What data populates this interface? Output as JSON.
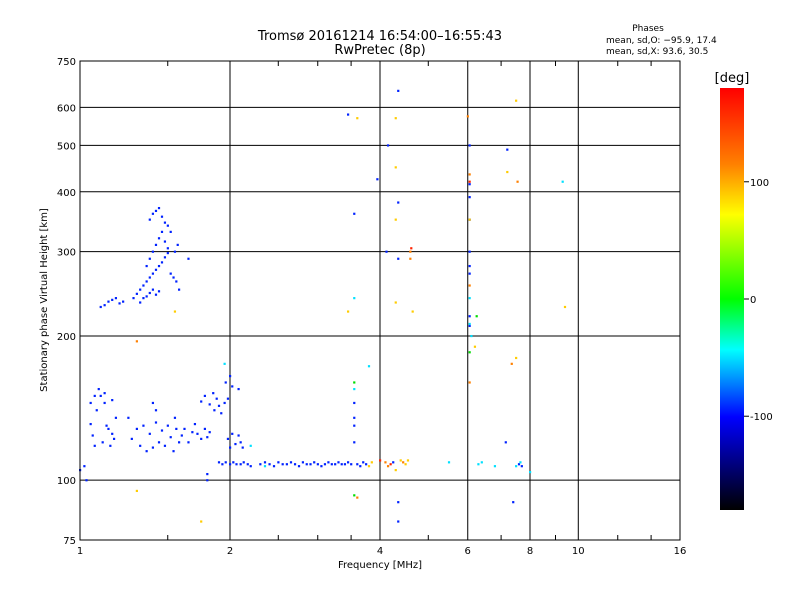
{
  "chart_data": {
    "type": "scatter",
    "title": "Tromsø 20161214 16:54:00–16:55:43",
    "subtitle": "RwPretec (8p)",
    "xlabel": "Frequency [MHz]",
    "ylabel": "Stationary phase Virtual Height [km]",
    "x_scale": "log",
    "y_scale": "log",
    "xlim": [
      1,
      16
    ],
    "ylim": [
      75,
      750
    ],
    "x_ticks": [
      1,
      2,
      4,
      6,
      8,
      10,
      16
    ],
    "y_ticks": [
      75,
      100,
      200,
      300,
      400,
      500,
      600,
      750
    ],
    "grid": true,
    "stats": {
      "header": "Phases",
      "line_o": "mean, sd,O: −95.9, 17.4",
      "line_x": "mean, sd,X:  93.6, 30.5"
    },
    "colorbar": {
      "label": "[deg]",
      "range": [
        -180,
        180
      ],
      "ticks": [
        100,
        0,
        -100
      ],
      "colors": [
        "#ff0000",
        "#ff8000",
        "#ffff00",
        "#00ff00",
        "#00ffff",
        "#0000ff",
        "#000000"
      ]
    },
    "series": [
      {
        "color": "#0022ff",
        "points": [
          [
            1.0,
            105
          ],
          [
            1.02,
            107
          ],
          [
            1.03,
            100
          ],
          [
            1.05,
            131
          ],
          [
            1.06,
            124
          ],
          [
            1.07,
            118
          ],
          [
            1.08,
            140
          ],
          [
            1.1,
            150
          ],
          [
            1.11,
            120
          ],
          [
            1.12,
            152
          ],
          [
            1.13,
            130
          ],
          [
            1.15,
            118
          ],
          [
            1.16,
            147
          ],
          [
            1.17,
            122
          ],
          [
            1.18,
            135
          ],
          [
            1.05,
            145
          ],
          [
            1.07,
            150
          ],
          [
            1.09,
            155
          ],
          [
            1.12,
            145
          ],
          [
            1.14,
            128
          ],
          [
            1.16,
            125
          ],
          [
            1.25,
            135
          ],
          [
            1.27,
            122
          ],
          [
            1.3,
            128
          ],
          [
            1.32,
            118
          ],
          [
            1.34,
            130
          ],
          [
            1.36,
            115
          ],
          [
            1.38,
            125
          ],
          [
            1.4,
            117
          ],
          [
            1.42,
            132
          ],
          [
            1.44,
            120
          ],
          [
            1.46,
            127
          ],
          [
            1.48,
            118
          ],
          [
            1.5,
            130
          ],
          [
            1.52,
            123
          ],
          [
            1.54,
            115
          ],
          [
            1.56,
            128
          ],
          [
            1.4,
            145
          ],
          [
            1.42,
            140
          ],
          [
            1.55,
            135
          ],
          [
            1.58,
            120
          ],
          [
            1.6,
            124
          ],
          [
            1.62,
            128
          ],
          [
            1.65,
            120
          ],
          [
            1.68,
            126
          ],
          [
            1.7,
            131
          ],
          [
            1.72,
            125
          ],
          [
            1.75,
            122
          ],
          [
            1.78,
            128
          ],
          [
            1.8,
            123
          ],
          [
            1.82,
            126
          ],
          [
            1.75,
            146
          ],
          [
            1.78,
            150
          ],
          [
            1.82,
            144
          ],
          [
            1.85,
            152
          ],
          [
            1.88,
            148
          ],
          [
            1.86,
            140
          ],
          [
            1.9,
            143
          ],
          [
            1.92,
            138
          ],
          [
            1.95,
            145
          ],
          [
            1.98,
            148
          ],
          [
            1.98,
            122
          ],
          [
            2.0,
            117
          ],
          [
            2.02,
            125
          ],
          [
            2.05,
            119
          ],
          [
            2.08,
            124
          ],
          [
            2.1,
            120
          ],
          [
            2.12,
            117
          ],
          [
            1.96,
            160
          ],
          [
            2.02,
            157
          ],
          [
            2.08,
            155
          ],
          [
            2.0,
            165
          ],
          [
            1.8,
            100
          ],
          [
            1.8,
            103
          ],
          [
            1.9,
            109
          ],
          [
            1.93,
            108
          ],
          [
            1.96,
            109
          ],
          [
            2.0,
            108
          ],
          [
            2.03,
            109
          ],
          [
            2.06,
            108
          ],
          [
            2.1,
            108
          ],
          [
            2.13,
            109
          ],
          [
            2.17,
            108
          ],
          [
            2.2,
            107
          ],
          [
            2.3,
            108
          ],
          [
            2.35,
            109
          ],
          [
            2.4,
            108
          ],
          [
            2.45,
            107
          ],
          [
            2.5,
            109
          ],
          [
            2.55,
            108
          ],
          [
            2.6,
            108
          ],
          [
            2.65,
            109
          ],
          [
            2.7,
            108
          ],
          [
            2.75,
            107
          ],
          [
            2.8,
            109
          ],
          [
            2.85,
            108
          ],
          [
            2.9,
            108
          ],
          [
            2.95,
            109
          ],
          [
            3.0,
            108
          ],
          [
            3.05,
            107
          ],
          [
            3.1,
            108
          ],
          [
            3.15,
            109
          ],
          [
            3.2,
            108
          ],
          [
            3.25,
            108
          ],
          [
            3.3,
            109
          ],
          [
            3.35,
            108
          ],
          [
            3.4,
            108
          ],
          [
            3.45,
            109
          ],
          [
            3.5,
            108
          ],
          [
            3.6,
            108
          ],
          [
            3.65,
            107
          ],
          [
            3.7,
            109
          ],
          [
            3.75,
            108
          ],
          [
            1.1,
            230
          ],
          [
            1.12,
            232
          ],
          [
            1.14,
            236
          ],
          [
            1.16,
            238
          ],
          [
            1.18,
            240
          ],
          [
            1.2,
            234
          ],
          [
            1.22,
            236
          ],
          [
            1.28,
            240
          ],
          [
            1.3,
            245
          ],
          [
            1.32,
            250
          ],
          [
            1.34,
            255
          ],
          [
            1.36,
            260
          ],
          [
            1.38,
            265
          ],
          [
            1.4,
            270
          ],
          [
            1.42,
            275
          ],
          [
            1.44,
            280
          ],
          [
            1.46,
            285
          ],
          [
            1.48,
            292
          ],
          [
            1.5,
            298
          ],
          [
            1.32,
            235
          ],
          [
            1.34,
            240
          ],
          [
            1.36,
            242
          ],
          [
            1.38,
            246
          ],
          [
            1.4,
            250
          ],
          [
            1.42,
            244
          ],
          [
            1.44,
            248
          ],
          [
            1.36,
            280
          ],
          [
            1.38,
            290
          ],
          [
            1.4,
            300
          ],
          [
            1.42,
            310
          ],
          [
            1.44,
            320
          ],
          [
            1.46,
            330
          ],
          [
            1.48,
            315
          ],
          [
            1.5,
            305
          ],
          [
            1.38,
            350
          ],
          [
            1.4,
            360
          ],
          [
            1.42,
            365
          ],
          [
            1.44,
            370
          ],
          [
            1.46,
            355
          ],
          [
            1.48,
            345
          ],
          [
            1.5,
            340
          ],
          [
            1.52,
            330
          ],
          [
            1.52,
            270
          ],
          [
            1.54,
            265
          ],
          [
            1.56,
            260
          ],
          [
            1.58,
            250
          ],
          [
            1.55,
            300
          ],
          [
            1.57,
            310
          ],
          [
            1.65,
            290
          ],
          [
            3.45,
            580
          ],
          [
            3.55,
            360
          ],
          [
            3.95,
            425
          ],
          [
            4.12,
            300
          ],
          [
            4.15,
            500
          ],
          [
            4.35,
            650
          ],
          [
            4.35,
            380
          ],
          [
            4.35,
            290
          ],
          [
            3.55,
            130
          ],
          [
            3.55,
            135
          ],
          [
            3.55,
            145
          ],
          [
            3.55,
            120
          ],
          [
            4.35,
            90
          ],
          [
            4.35,
            82
          ],
          [
            4.25,
            109
          ],
          [
            6.05,
            415
          ],
          [
            6.05,
            390
          ],
          [
            6.05,
            350
          ],
          [
            6.05,
            300
          ],
          [
            6.05,
            280
          ],
          [
            6.05,
            270
          ],
          [
            6.05,
            220
          ],
          [
            6.05,
            210
          ],
          [
            6.05,
            500
          ],
          [
            7.15,
            120
          ],
          [
            7.4,
            90
          ],
          [
            7.2,
            490
          ],
          [
            7.6,
            108
          ],
          [
            7.7,
            107
          ]
        ]
      },
      {
        "color": "#00e0ff",
        "points": [
          [
            1.95,
            175
          ],
          [
            2.2,
            118
          ],
          [
            2.35,
            107
          ],
          [
            3.55,
            240
          ],
          [
            3.55,
            155
          ],
          [
            3.8,
            173
          ],
          [
            5.5,
            109
          ],
          [
            6.3,
            108
          ],
          [
            6.4,
            109
          ],
          [
            6.8,
            107
          ],
          [
            7.5,
            107
          ],
          [
            7.65,
            109
          ],
          [
            8.0,
            104
          ],
          [
            9.3,
            420
          ],
          [
            6.05,
            240
          ],
          [
            6.05,
            212
          ],
          [
            6.1,
            200
          ]
        ]
      },
      {
        "color": "#00dd00",
        "points": [
          [
            3.55,
            160
          ],
          [
            3.55,
            93
          ],
          [
            6.05,
            185
          ],
          [
            6.25,
            220
          ]
        ]
      },
      {
        "color": "#ffcc00",
        "points": [
          [
            1.55,
            225
          ],
          [
            1.3,
            95
          ],
          [
            1.75,
            82
          ],
          [
            3.45,
            225
          ],
          [
            3.6,
            570
          ],
          [
            4.3,
            570
          ],
          [
            4.3,
            450
          ],
          [
            4.3,
            350
          ],
          [
            4.3,
            235
          ],
          [
            4.3,
            105
          ],
          [
            4.4,
            110
          ],
          [
            4.5,
            108
          ],
          [
            4.55,
            110
          ],
          [
            4.65,
            225
          ],
          [
            6.05,
            350
          ],
          [
            6.2,
            190
          ],
          [
            7.2,
            440
          ],
          [
            7.5,
            180
          ],
          [
            7.5,
            620
          ],
          [
            9.4,
            230
          ],
          [
            3.8,
            107
          ],
          [
            3.85,
            109
          ]
        ]
      },
      {
        "color": "#ff8000",
        "points": [
          [
            1.3,
            195
          ],
          [
            3.6,
            92
          ],
          [
            4.1,
            109
          ],
          [
            4.15,
            107
          ],
          [
            4.45,
            109
          ],
          [
            4.6,
            300
          ],
          [
            4.6,
            290
          ],
          [
            6.05,
            435
          ],
          [
            6.05,
            255
          ],
          [
            6.05,
            160
          ],
          [
            7.35,
            175
          ],
          [
            7.55,
            420
          ],
          [
            6.0,
            575
          ]
        ]
      },
      {
        "color": "#ff2200",
        "points": [
          [
            4.62,
            305
          ],
          [
            6.05,
            420
          ],
          [
            4.0,
            110
          ],
          [
            4.2,
            108
          ]
        ]
      }
    ]
  }
}
